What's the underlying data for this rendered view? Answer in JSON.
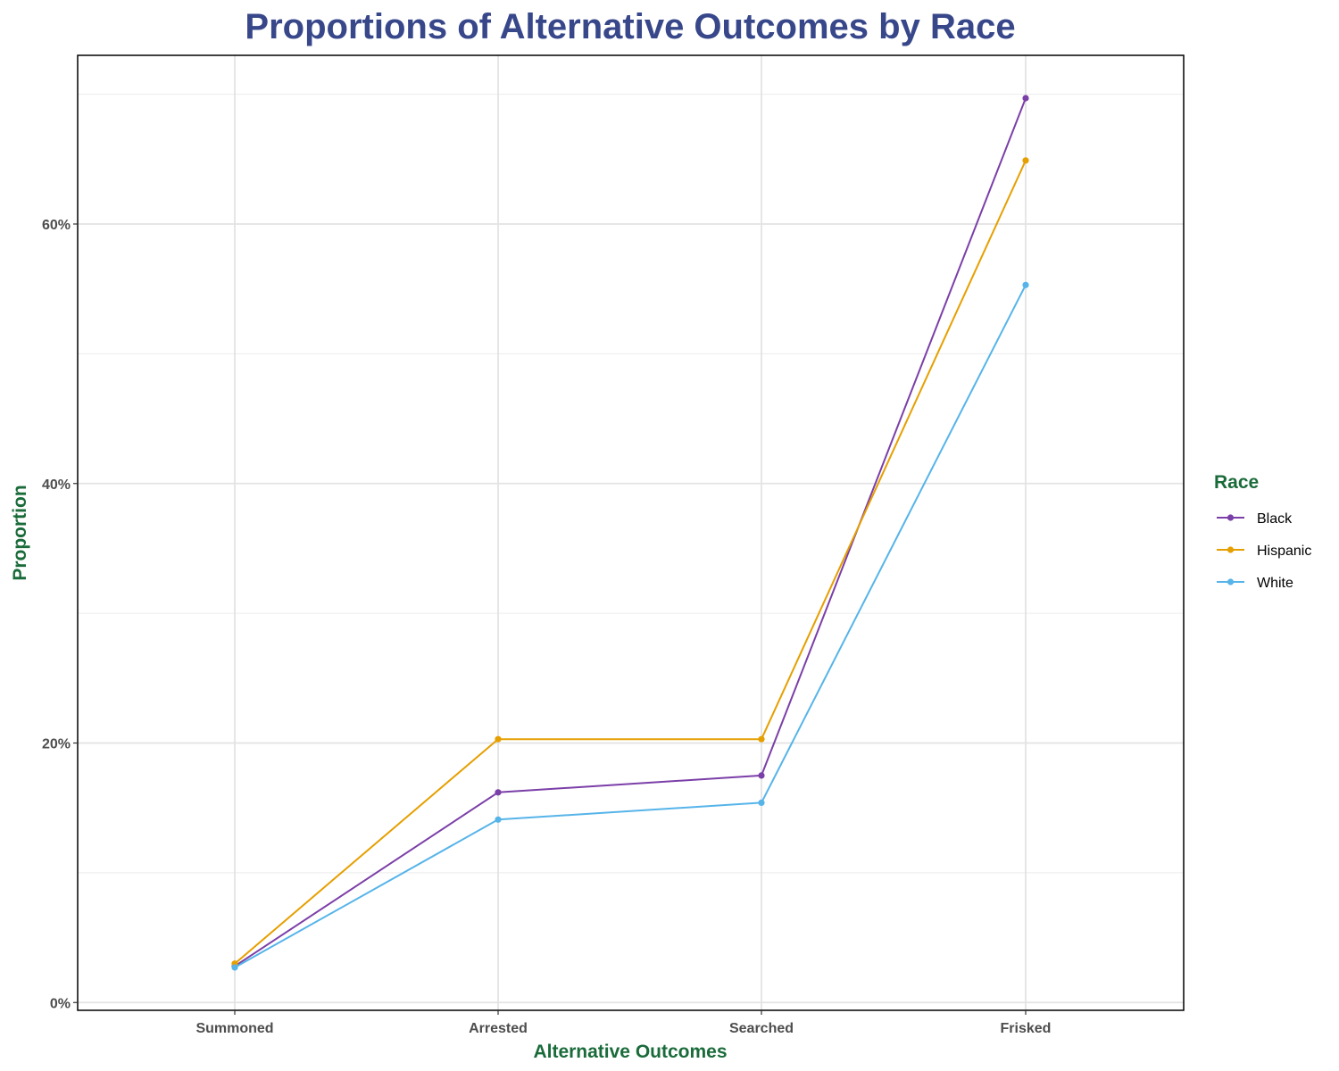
{
  "chart_data": {
    "type": "line",
    "title": "Proportions of Alternative Outcomes by Race",
    "xlabel": "Alternative Outcomes",
    "ylabel": "Proportion",
    "categories": [
      "Summoned",
      "Arrested",
      "Searched",
      "Frisked"
    ],
    "y_ticks": [
      0,
      20,
      40,
      60
    ],
    "y_tick_labels": [
      "0%",
      "20%",
      "40%",
      "60%"
    ],
    "ylim": [
      -0.6,
      73.0
    ],
    "grid": true,
    "legend": {
      "title": "Race",
      "position": "right"
    },
    "series": [
      {
        "name": "Black",
        "color": "#7b3fa8",
        "values": [
          2.8,
          16.2,
          17.5,
          69.7
        ]
      },
      {
        "name": "Hispanic",
        "color": "#e69f00",
        "values": [
          3.0,
          20.3,
          20.3,
          64.9
        ]
      },
      {
        "name": "White",
        "color": "#56b4e9",
        "values": [
          2.7,
          14.1,
          15.4,
          55.3
        ]
      }
    ]
  }
}
